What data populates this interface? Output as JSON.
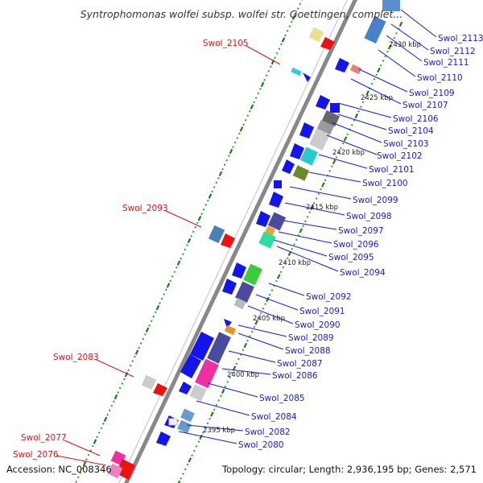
{
  "title": "Syntrophomonas wolfei subsp. wolfei str. Goettingen, complet...",
  "footer": {
    "accession": "Accession: NC_008346",
    "topology": "Topology: circular; Length: 2,936,195 bp; Genes: 2,571"
  },
  "colors": {
    "backbone": "#808080",
    "forward_label": "#1a1acc",
    "reverse_label": "#dd1111",
    "gene_forward": "#1010ee",
    "gene_reverse": "#ee1111",
    "tick_major": "#1a7a1a",
    "tick_minor": "#2a9a2a"
  },
  "kbp_marks": [
    "2430 kbp",
    "2425 kbp",
    "2420 kbp",
    "2415 kbp",
    "2410 kbp",
    "2405 kbp",
    "2400 kbp",
    "2395 kbp"
  ],
  "labels_right": [
    "Swol_2113",
    "Swol_2112",
    "Swol_2111",
    "Swol_2110",
    "Swol_2109",
    "Swol_2107",
    "Swol_2106",
    "Swol_2104",
    "Swol_2103",
    "Swol_2102",
    "Swol_2101",
    "Swol_2100",
    "Swol_2099",
    "Swol_2098",
    "Swol_2097",
    "Swol_2096",
    "Swol_2095",
    "Swol_2094",
    "Swol_2092",
    "Swol_2091",
    "Swol_2090",
    "Swol_2089",
    "Swol_2088",
    "Swol_2087",
    "Swol_2086",
    "Swol_2085",
    "Swol_2084",
    "Swol_2082",
    "Swol_2080"
  ],
  "labels_left": [
    "Swol_2105",
    "Swol_2093",
    "Swol_2083",
    "Swol_2077",
    "Swol_2076"
  ]
}
